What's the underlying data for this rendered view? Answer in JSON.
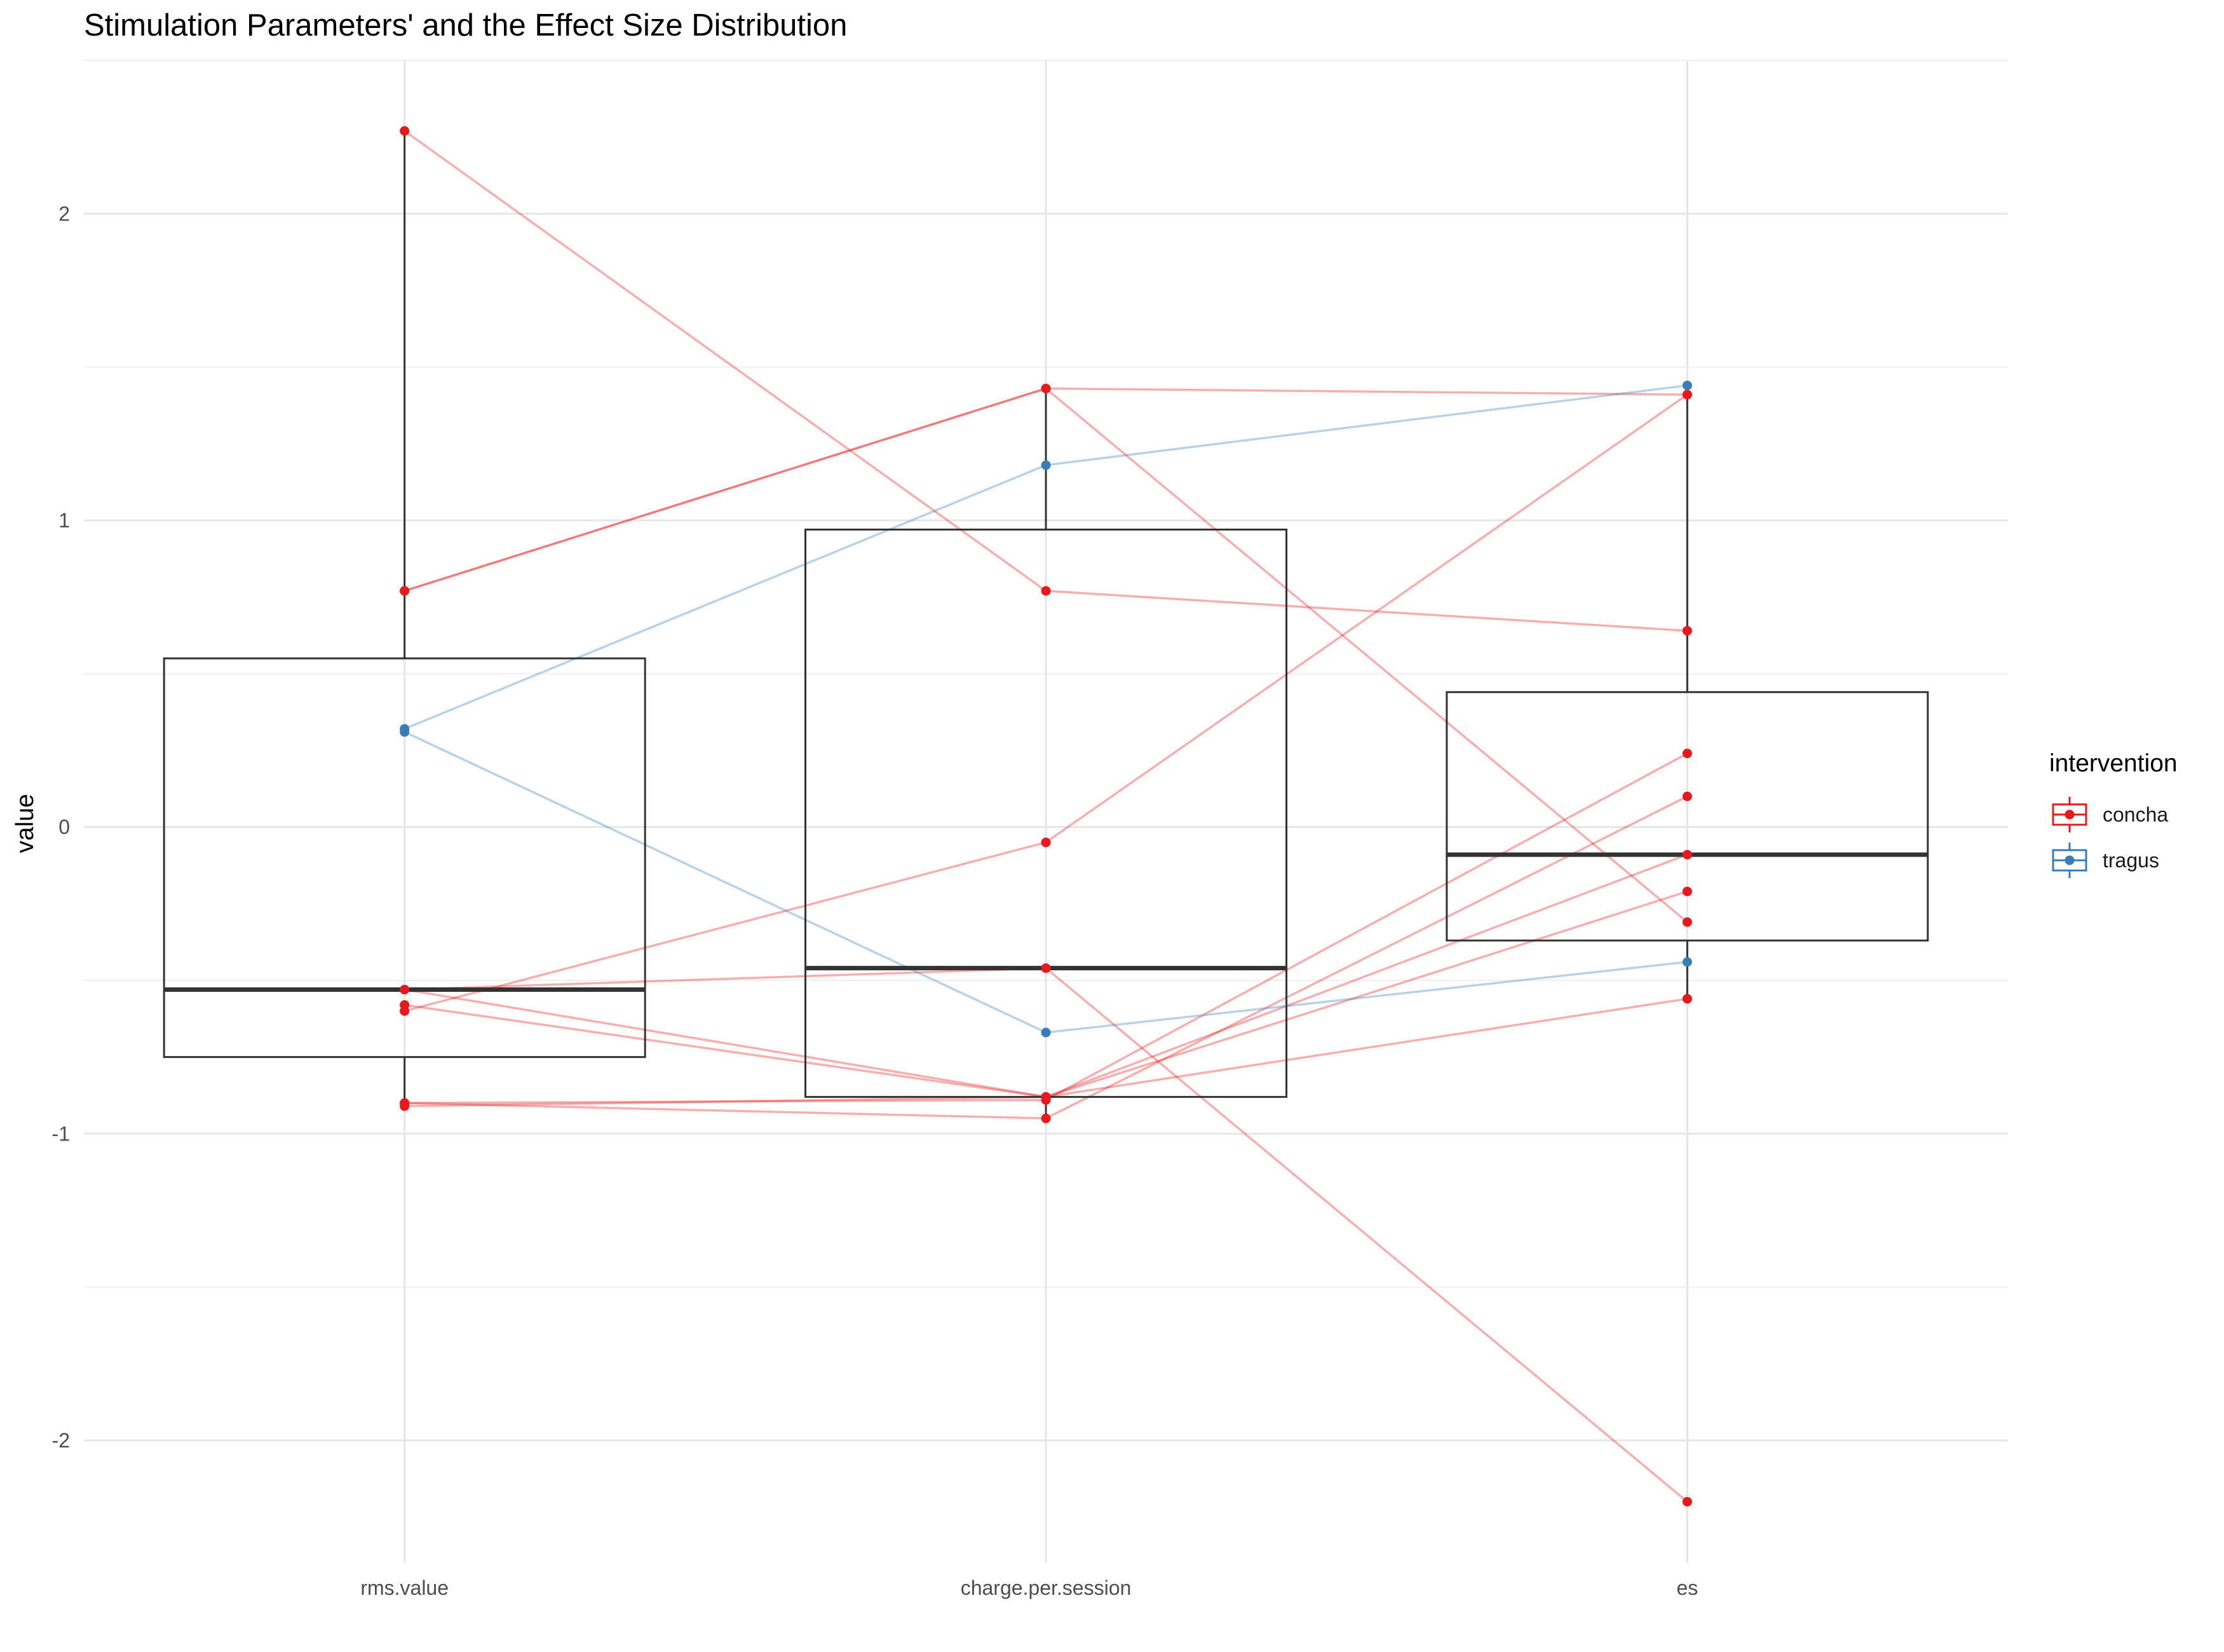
{
  "chart_data": {
    "type": "boxplot",
    "title": "Stimulation Parameters' and the Effect Size Distribution",
    "xlabel": "",
    "ylabel": "value",
    "categories": [
      "rms.value",
      "charge.per.session",
      "es"
    ],
    "ylim": [
      -2.4,
      2.5
    ],
    "y_ticks": [
      -2,
      -1,
      0,
      1,
      2
    ],
    "grid": true,
    "legend": {
      "title": "intervention",
      "placement": "right"
    },
    "groups": [
      {
        "name": "concha",
        "color": "#E41A1C"
      },
      {
        "name": "tragus",
        "color": "#377EB8"
      }
    ],
    "boxes": [
      {
        "category": "rms.value",
        "min": -0.91,
        "q1": -0.75,
        "median": -0.53,
        "q3": 0.55,
        "max": 2.27
      },
      {
        "category": "charge.per.session",
        "min": -0.95,
        "q1": -0.88,
        "median": -0.46,
        "q3": 0.97,
        "max": 1.43
      },
      {
        "category": "es",
        "min": -0.56,
        "q1": -0.37,
        "median": -0.09,
        "q3": 0.44,
        "max": 1.44
      }
    ],
    "series": [
      {
        "group": "concha",
        "values": [
          2.27,
          0.77,
          0.64
        ]
      },
      {
        "group": "concha",
        "values": [
          0.77,
          1.43,
          1.41
        ]
      },
      {
        "group": "concha",
        "values": [
          -0.53,
          -0.46,
          -2.2
        ]
      },
      {
        "group": "concha",
        "values": [
          -0.58,
          -0.88,
          -0.09
        ]
      },
      {
        "group": "concha",
        "values": [
          -0.6,
          -0.05,
          1.41
        ]
      },
      {
        "group": "concha",
        "values": [
          -0.9,
          -0.89,
          0.24
        ]
      },
      {
        "group": "concha",
        "values": [
          -0.9,
          -0.95,
          0.1
        ]
      },
      {
        "group": "concha",
        "values": [
          -0.91,
          -0.88,
          -0.56
        ]
      },
      {
        "group": "concha",
        "values": [
          -0.53,
          -0.88,
          -0.21
        ]
      },
      {
        "group": "concha",
        "values": [
          0.77,
          1.43,
          -0.31
        ]
      },
      {
        "group": "tragus",
        "values": [
          0.32,
          1.18,
          1.44
        ]
      },
      {
        "group": "tragus",
        "values": [
          0.31,
          -0.67,
          -0.44
        ]
      }
    ]
  }
}
